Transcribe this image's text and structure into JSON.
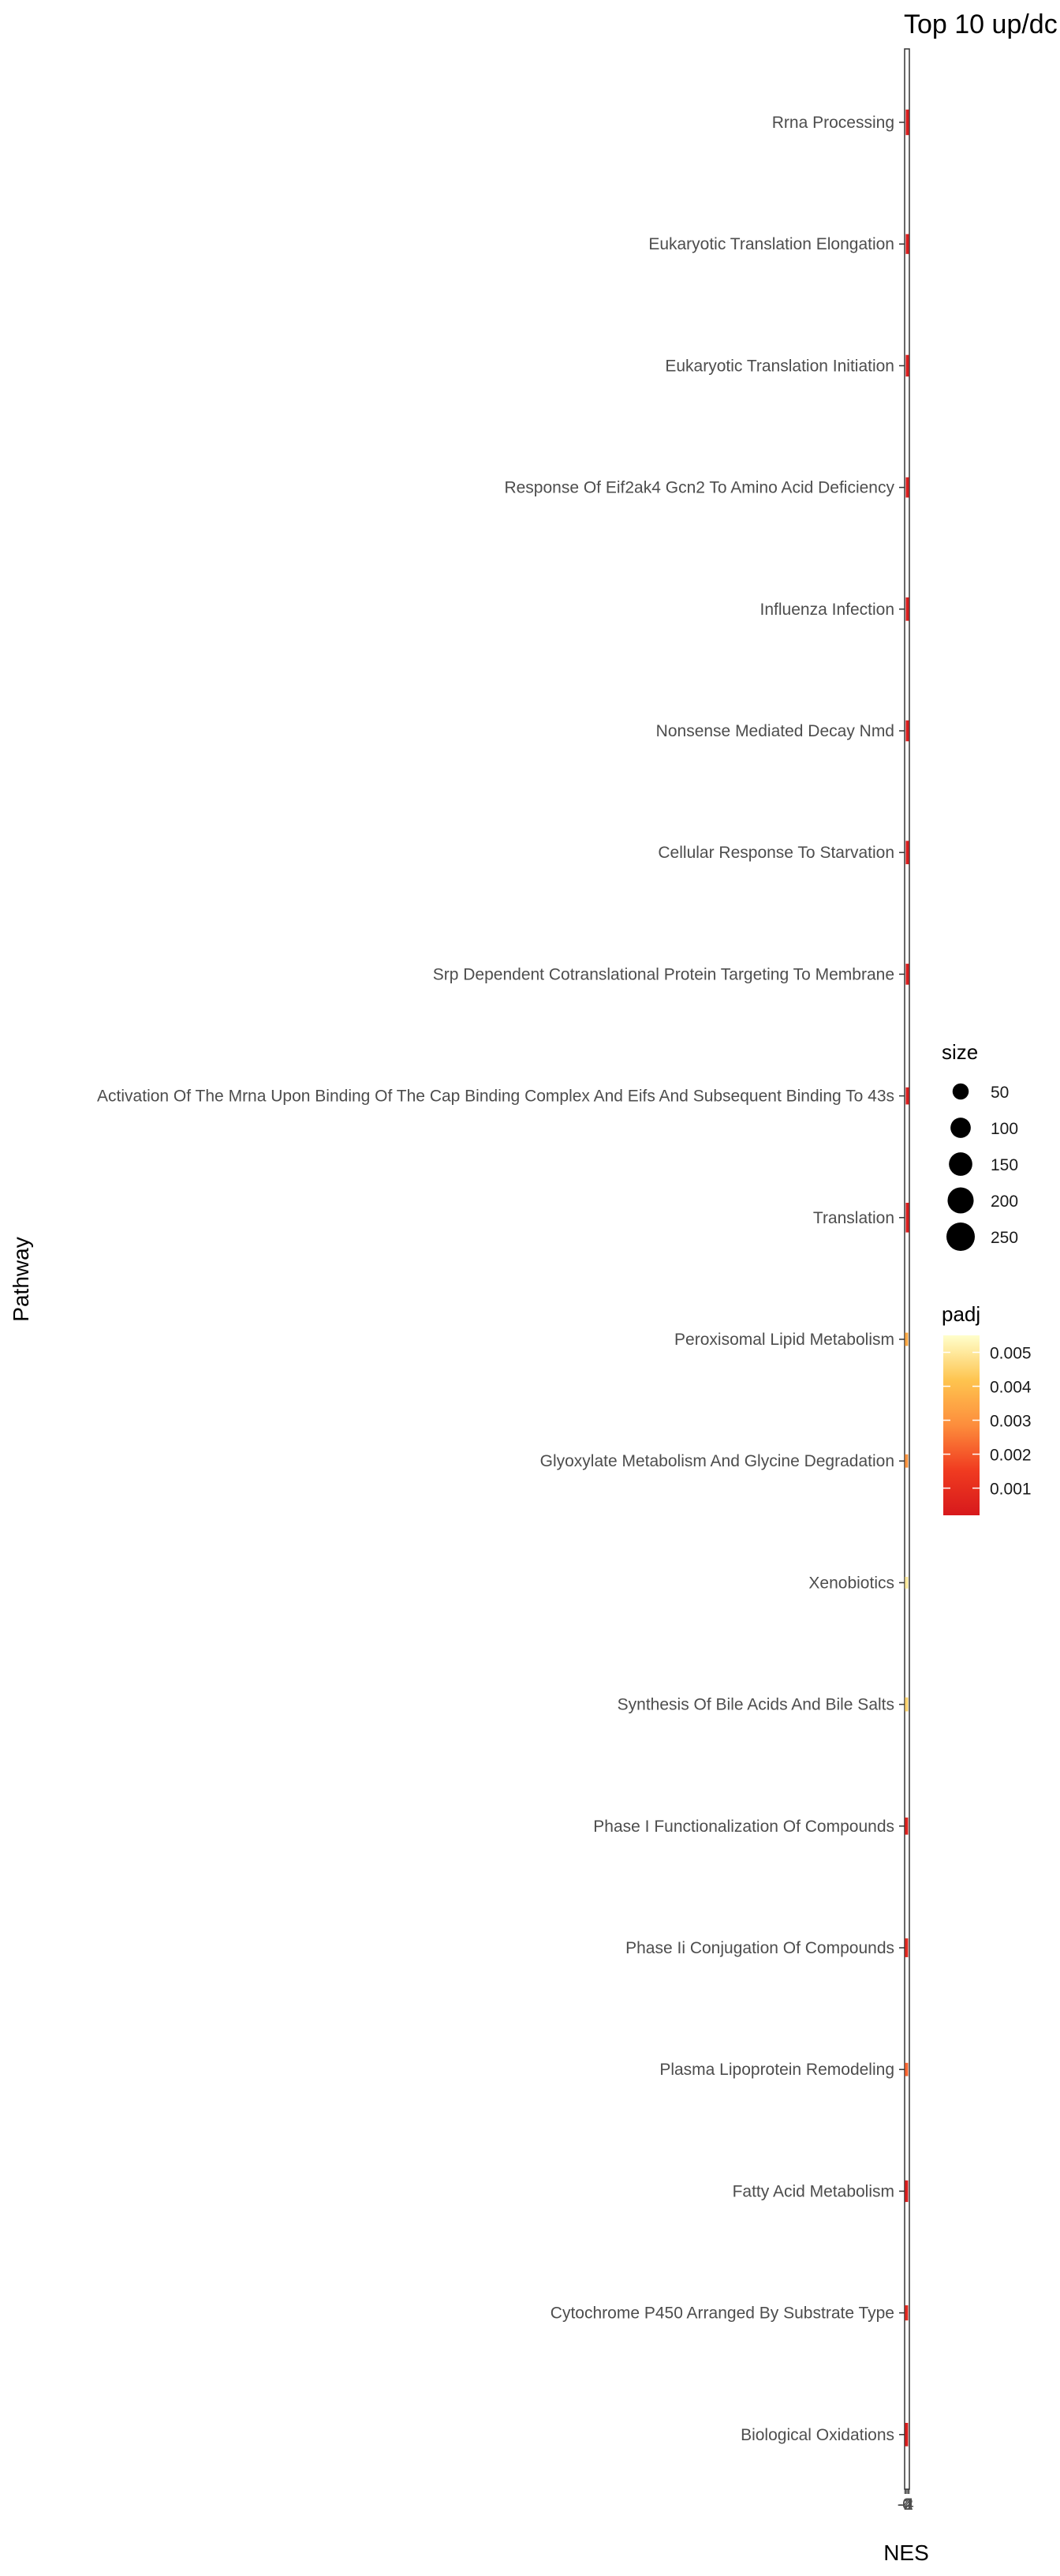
{
  "chart_data": {
    "type": "scatter",
    "title": "Top 10 up/dc",
    "xlabel": "NES",
    "ylabel": "Pathway",
    "x_tick_labels": [
      "-4",
      "-2",
      "0",
      "2",
      "4"
    ],
    "xlim": [
      -4.2,
      4.2
    ],
    "grid": false,
    "legend_position": "right",
    "pathways": [
      {
        "name": "Rrna Processing",
        "nes": 0.6,
        "size": 190,
        "padj": 0.0003
      },
      {
        "name": "Eukaryotic Translation Elongation",
        "nes": 0.6,
        "size": 95,
        "padj": 0.0003
      },
      {
        "name": "Eukaryotic Translation Initiation",
        "nes": 0.6,
        "size": 120,
        "padj": 0.0003
      },
      {
        "name": "Response Of Eif2ak4 Gcn2 To Amino Acid Deficiency",
        "nes": 0.6,
        "size": 100,
        "padj": 0.0003
      },
      {
        "name": "Influenza Infection",
        "nes": 0.6,
        "size": 150,
        "padj": 0.0003
      },
      {
        "name": "Nonsense Mediated Decay Nmd",
        "nes": 0.6,
        "size": 110,
        "padj": 0.0003
      },
      {
        "name": "Cellular Response To Starvation",
        "nes": 0.6,
        "size": 150,
        "padj": 0.0003
      },
      {
        "name": "Srp Dependent Cotranslational Protein Targeting To Membrane",
        "nes": 0.6,
        "size": 110,
        "padj": 0.0003
      },
      {
        "name": "Activation Of The Mrna Upon Binding Of The Cap Binding Complex And Eifs And Subsequent Binding To 43s",
        "nes": 0.6,
        "size": 60,
        "padj": 0.0003
      },
      {
        "name": "Translation",
        "nes": 0.6,
        "size": 280,
        "padj": 0.0003
      },
      {
        "name": "Peroxisomal Lipid Metabolism",
        "nes": -0.8,
        "size": 25,
        "padj": 0.0035
      },
      {
        "name": "Glyoxylate Metabolism And Glycine Degradation",
        "nes": -0.8,
        "size": 25,
        "padj": 0.003
      },
      {
        "name": "Xenobiotics",
        "nes": -0.8,
        "size": 15,
        "padj": 0.005
      },
      {
        "name": "Synthesis Of Bile Acids And Bile Salts",
        "nes": -0.8,
        "size": 30,
        "padj": 0.0045
      },
      {
        "name": "Phase I Functionalization Of Compounds",
        "nes": -0.8,
        "size": 60,
        "padj": 0.0004
      },
      {
        "name": "Phase Ii Conjugation Of Compounds",
        "nes": -0.8,
        "size": 80,
        "padj": 0.0006
      },
      {
        "name": "Plasma Lipoprotein Remodeling",
        "nes": -0.8,
        "size": 25,
        "padj": 0.002
      },
      {
        "name": "Fatty Acid Metabolism",
        "nes": -0.8,
        "size": 120,
        "padj": 0.0003
      },
      {
        "name": "Cytochrome P450 Arranged By Substrate Type",
        "nes": -0.8,
        "size": 40,
        "padj": 0.0006
      },
      {
        "name": "Biological Oxidations",
        "nes": -0.8,
        "size": 150,
        "padj": 0.0003
      }
    ],
    "legend_size": {
      "title": "size",
      "breaks": [
        50,
        100,
        150,
        200,
        250
      ]
    },
    "legend_color": {
      "title": "padj",
      "breaks": [
        "0.005",
        "0.004",
        "0.003",
        "0.002",
        "0.001"
      ],
      "range": [
        0.0002,
        0.0055
      ],
      "colors": [
        "#d7191c",
        "#fc4e2a",
        "#fd8d3c",
        "#fec44f",
        "#ffffcc"
      ]
    }
  }
}
